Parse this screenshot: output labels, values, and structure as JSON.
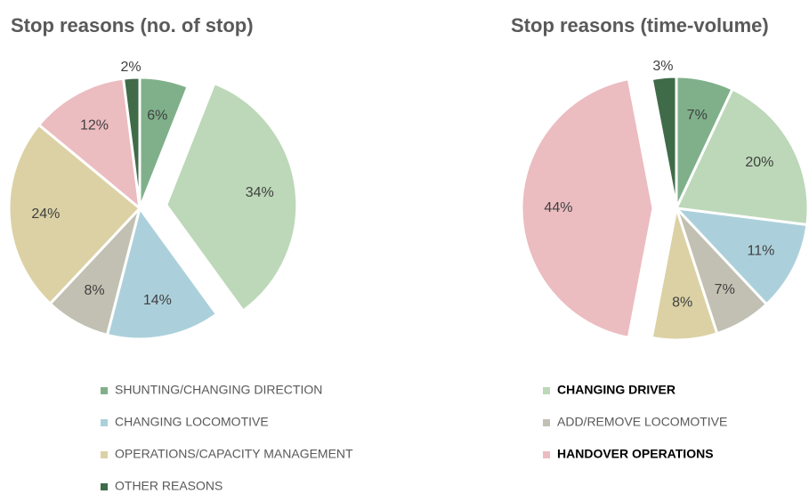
{
  "chart_data": [
    {
      "type": "pie",
      "title": "Stop reasons (no. of stop)",
      "values": [
        6,
        34,
        14,
        8,
        24,
        12,
        2
      ],
      "value_labels": [
        "6%",
        "34%",
        "14%",
        "8%",
        "24%",
        "12%",
        "2%"
      ],
      "explode": [
        false,
        true,
        false,
        false,
        false,
        false,
        false
      ]
    },
    {
      "type": "pie",
      "title": "Stop reasons (time-volume)",
      "values": [
        7,
        20,
        11,
        7,
        8,
        44,
        3
      ],
      "value_labels": [
        "7%",
        "20%",
        "11%",
        "7%",
        "8%",
        "44%",
        "3%"
      ],
      "explode": [
        false,
        false,
        false,
        false,
        false,
        true,
        false
      ]
    }
  ],
  "legend": {
    "entries": [
      {
        "name": "SHUNTING/CHANGING DIRECTION",
        "color": "#7fb08a",
        "bold": false
      },
      {
        "name": "CHANGING DRIVER",
        "color": "#bcd8b8",
        "bold": true
      },
      {
        "name": "CHANGING LOCOMOTIVE",
        "color": "#acd0db",
        "bold": false
      },
      {
        "name": "ADD/REMOVE LOCOMOTIVE",
        "color": "#c2c0b2",
        "bold": false
      },
      {
        "name": "OPERATIONS/CAPACITY MANAGEMENT",
        "color": "#dbd1a4",
        "bold": false
      },
      {
        "name": "HANDOVER OPERATIONS",
        "color": "#ebbcc0",
        "bold": true
      },
      {
        "name": "OTHER REASONS",
        "color": "#3f6b49",
        "bold": false
      }
    ]
  }
}
